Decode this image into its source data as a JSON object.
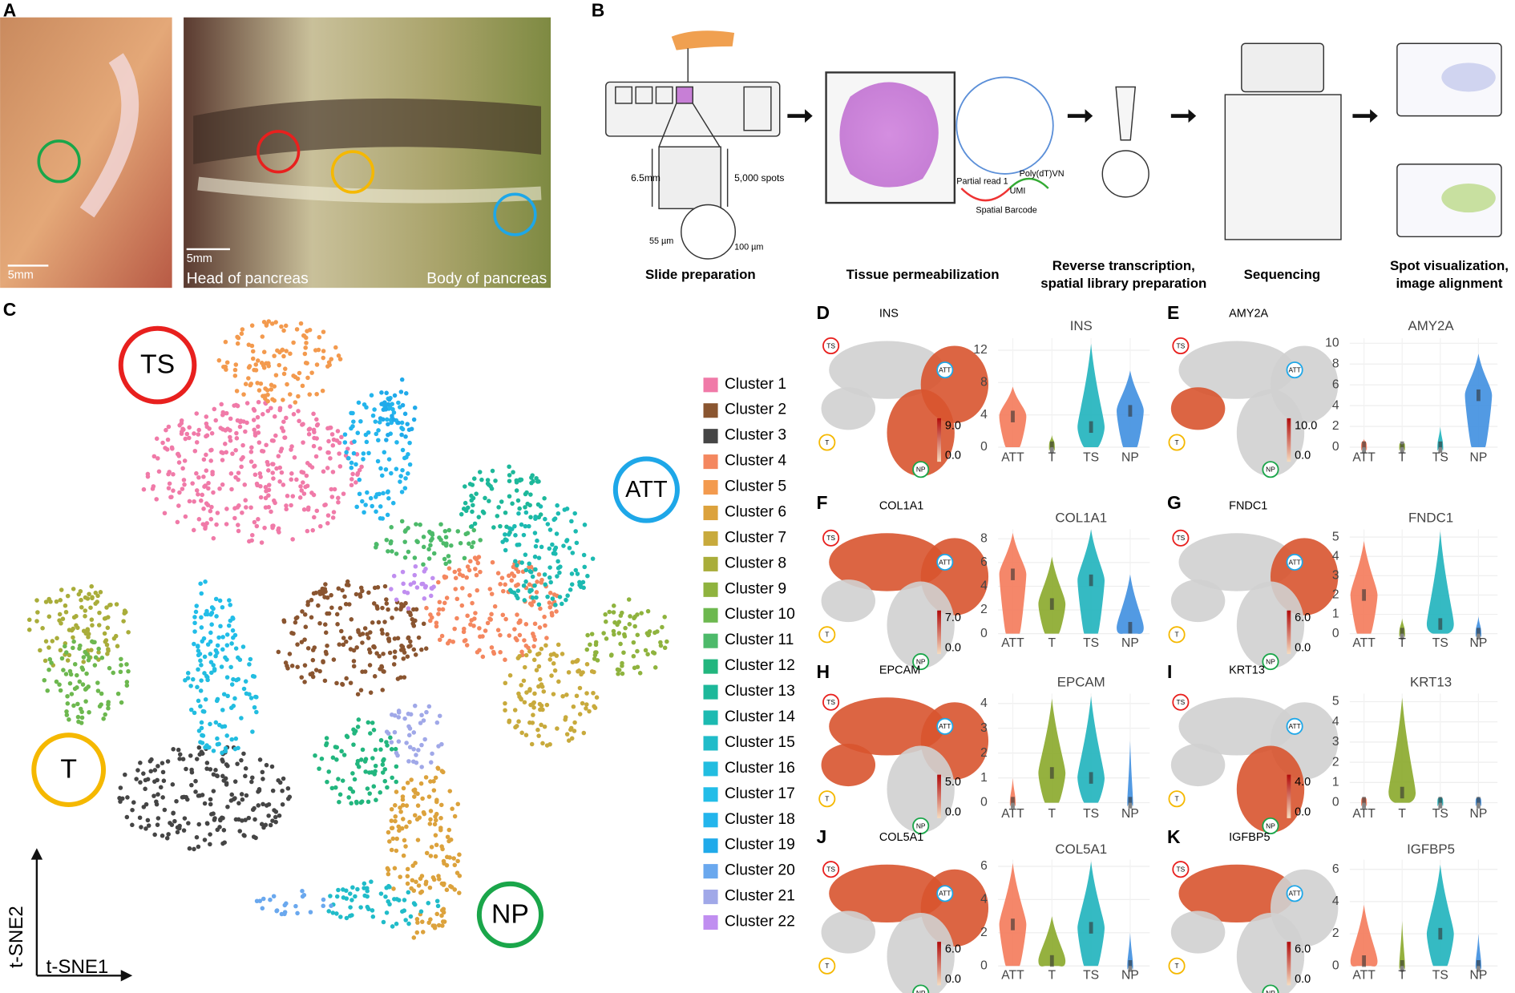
{
  "panel_labels": [
    "A",
    "B",
    "C",
    "D",
    "E",
    "F",
    "G",
    "H",
    "I",
    "J",
    "K"
  ],
  "panel_a": {
    "scale_bars": [
      "5mm",
      "5mm"
    ],
    "captions": [
      "Head of pancreas",
      "Body of pancreas"
    ]
  },
  "panel_b": {
    "slide": {
      "dimension": "6.5mm",
      "spots": "5,000 spots",
      "spot_size": "55 µm",
      "spacing": "100 µm"
    },
    "barcode": [
      "Partial read 1",
      "Poly(dT)VN",
      "UMI",
      "Spatial Barcode"
    ],
    "steps": [
      {
        "lines": [
          "Slide preparation"
        ]
      },
      {
        "lines": [
          "Tissue permeabilization"
        ]
      },
      {
        "lines": [
          "Reverse transcription,",
          "spatial library preparation"
        ]
      },
      {
        "lines": [
          "Sequencing"
        ]
      },
      {
        "lines": [
          "Spot visualization,",
          "image alignment"
        ]
      }
    ]
  },
  "panel_c": {
    "regions": [
      {
        "name": "TS",
        "color": "#e8201e"
      },
      {
        "name": "ATT",
        "color": "#1ea7e8"
      },
      {
        "name": "T",
        "color": "#f5b800"
      },
      {
        "name": "NP",
        "color": "#1aa64a"
      }
    ],
    "clusters": [
      {
        "name": "Cluster 1",
        "color": "#f07aa8"
      },
      {
        "name": "Cluster 2",
        "color": "#8a5530"
      },
      {
        "name": "Cluster 3",
        "color": "#454545"
      },
      {
        "name": "Cluster 4",
        "color": "#f4875f"
      },
      {
        "name": "Cluster 5",
        "color": "#f39a4e"
      },
      {
        "name": "Cluster 6",
        "color": "#dca23c"
      },
      {
        "name": "Cluster 7",
        "color": "#c8aa3c"
      },
      {
        "name": "Cluster 8",
        "color": "#a9ad3a"
      },
      {
        "name": "Cluster 9",
        "color": "#8fb33e"
      },
      {
        "name": "Cluster 10",
        "color": "#6db84f"
      },
      {
        "name": "Cluster 11",
        "color": "#4dba6a"
      },
      {
        "name": "Cluster 12",
        "color": "#22b67e"
      },
      {
        "name": "Cluster 13",
        "color": "#1db89a"
      },
      {
        "name": "Cluster 14",
        "color": "#1cbab1"
      },
      {
        "name": "Cluster 15",
        "color": "#20bcc9"
      },
      {
        "name": "Cluster 16",
        "color": "#22bde0"
      },
      {
        "name": "Cluster 17",
        "color": "#22bde8"
      },
      {
        "name": "Cluster 18",
        "color": "#23b5ec"
      },
      {
        "name": "Cluster 19",
        "color": "#20aaea"
      },
      {
        "name": "Cluster 20",
        "color": "#6aa8ee"
      },
      {
        "name": "Cluster 21",
        "color": "#a0a8e8"
      },
      {
        "name": "Cluster 22",
        "color": "#c08ef0"
      }
    ],
    "x_axis": "t-SNE1",
    "y_axis": "t-SNE2"
  },
  "violin_categories": [
    "ATT",
    "T",
    "TS",
    "NP"
  ],
  "violin_colors": [
    "#f47a5a",
    "#8aa82a",
    "#1fb3bd",
    "#3f8fe0"
  ],
  "genes": [
    {
      "name": "INS",
      "ylim": [
        0,
        13.5
      ],
      "yticks": [
        0,
        4,
        8,
        12
      ],
      "colorbar": [
        "9.0",
        "0.0"
      ],
      "medians": [
        3.8,
        0,
        2.5,
        4.5
      ],
      "maxima": [
        7.5,
        1.5,
        12.8,
        9.5
      ]
    },
    {
      "name": "AMY2A",
      "ylim": [
        0,
        10.5
      ],
      "yticks": [
        0,
        2,
        4,
        6,
        8,
        10
      ],
      "colorbar": [
        "10.0",
        "0.0"
      ],
      "medians": [
        0,
        0,
        0,
        5
      ],
      "maxima": [
        0.8,
        0.3,
        2,
        9
      ]
    },
    {
      "name": "COL1A1",
      "ylim": [
        0,
        8.8
      ],
      "yticks": [
        0,
        2,
        4,
        6,
        8
      ],
      "colorbar": [
        "7.0",
        "0.0"
      ],
      "medians": [
        5,
        2.5,
        4.5,
        0.5
      ],
      "maxima": [
        8.5,
        6.5,
        8.8,
        5
      ]
    },
    {
      "name": "FNDC1",
      "ylim": [
        0,
        5.4
      ],
      "yticks": [
        0,
        1,
        2,
        3,
        4,
        5
      ],
      "colorbar": [
        "6.0",
        "0.0"
      ],
      "medians": [
        2,
        0,
        0.5,
        0
      ],
      "maxima": [
        4.8,
        0.8,
        5.3,
        0.9
      ]
    },
    {
      "name": "EPCAM",
      "ylim": [
        0,
        4.4
      ],
      "yticks": [
        0,
        1,
        2,
        3,
        4
      ],
      "colorbar": [
        "5.0",
        "0.0"
      ],
      "medians": [
        0,
        1.2,
        1,
        0
      ],
      "maxima": [
        1,
        4.2,
        4.3,
        2.5
      ]
    },
    {
      "name": "KRT13",
      "ylim": [
        0,
        5.4
      ],
      "yticks": [
        0,
        1,
        2,
        3,
        4,
        5
      ],
      "colorbar": [
        "4.0",
        "0.0"
      ],
      "medians": [
        0,
        0.5,
        0,
        0
      ],
      "maxima": [
        0.3,
        5.2,
        0.3,
        0.3
      ]
    },
    {
      "name": "COL5A1",
      "ylim": [
        0,
        6.4
      ],
      "yticks": [
        0,
        2,
        4,
        6
      ],
      "colorbar": [
        "6.0",
        "0.0"
      ],
      "medians": [
        2.5,
        0.3,
        2.3,
        0
      ],
      "maxima": [
        6.2,
        3,
        6.3,
        2
      ]
    },
    {
      "name": "IGFBP5",
      "ylim": [
        0,
        6.6
      ],
      "yticks": [
        0,
        2,
        4,
        6
      ],
      "colorbar": [
        "6.0",
        "0.0"
      ],
      "medians": [
        0.3,
        0,
        2,
        0
      ],
      "maxima": [
        3.8,
        2.8,
        6.3,
        2
      ]
    }
  ]
}
